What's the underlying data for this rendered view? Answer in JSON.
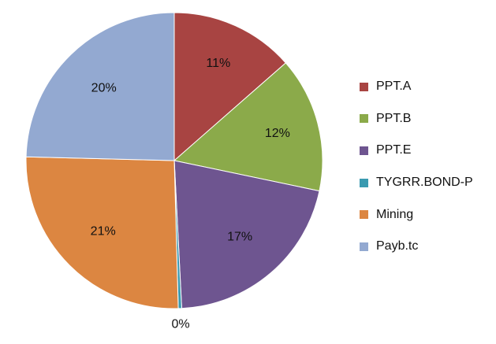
{
  "chart_data": {
    "type": "pie",
    "title": "",
    "categories": [
      "PPT.A",
      "PPT.B",
      "PPT.E",
      "TYGRR.BOND-P",
      "Mining",
      "Payb.tc"
    ],
    "values": [
      11,
      12,
      17,
      0.3,
      21,
      20
    ],
    "labels": [
      "11%",
      "12%",
      "17%",
      "0%",
      "21%",
      "20%"
    ],
    "colors": [
      "#A84442",
      "#8BAA4A",
      "#6E5590",
      "#3A9AB0",
      "#DC8641",
      "#93A9D1"
    ],
    "legend_position": "right"
  }
}
